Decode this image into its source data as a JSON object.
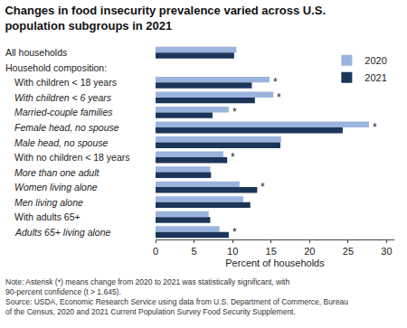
{
  "chart_data": {
    "type": "bar",
    "orientation": "horizontal",
    "title": "Changes in food insecurity prevalence varied across U.S. population subgroups in 2021",
    "x_label": "Percent of households",
    "categories": [
      "All households",
      "Household composition:",
      "With children < 18 years",
      "With children < 6 years",
      "Married-couple families",
      "Female head, no spouse",
      "Male head, no spouse",
      "With no children < 18 years",
      "More than one adult",
      "Women living alone",
      "Men living alone",
      "With adults 65+",
      "Adults 65+ living alone"
    ],
    "series": [
      {
        "name": "2020",
        "color": "#9ab4de",
        "values": [
          10.5,
          null,
          14.8,
          15.3,
          9.5,
          27.7,
          16.3,
          8.8,
          7.1,
          10.9,
          11.4,
          6.9,
          8.3
        ]
      },
      {
        "name": "2021",
        "color": "#1c3659",
        "values": [
          10.2,
          null,
          12.5,
          12.9,
          7.4,
          24.3,
          16.2,
          9.3,
          7.2,
          13.2,
          12.3,
          7.1,
          9.5
        ]
      }
    ],
    "xlim": [
      0,
      31
    ],
    "xticks": [
      0,
      5,
      10,
      15,
      20,
      25,
      30
    ],
    "grid": false,
    "legend": "top right",
    "data_labels": false,
    "annotations": [
      {
        "text": "*",
        "category": "With children < 18 years"
      },
      {
        "text": "*",
        "category": "With children < 6 years"
      },
      {
        "text": "*",
        "category": "Married-couple families"
      },
      {
        "text": "*",
        "category": "Female head, no spouse"
      },
      {
        "text": "*",
        "category": "With no children < 18 years"
      },
      {
        "text": "*",
        "category": "Women living alone"
      },
      {
        "text": "*",
        "category": "Adults 65+ living alone"
      }
    ],
    "note": "Note: Asterisk (*) means change from 2020 to 2021 was statistically significant, with 90-percent confidence (t > 1.645).",
    "source": "Source: USDA, Economic Research Service using data from U.S. Department of Commerce, Bureau of the Census, 2020 and 2021 Current Population Survey Food Security Supplement."
  }
}
